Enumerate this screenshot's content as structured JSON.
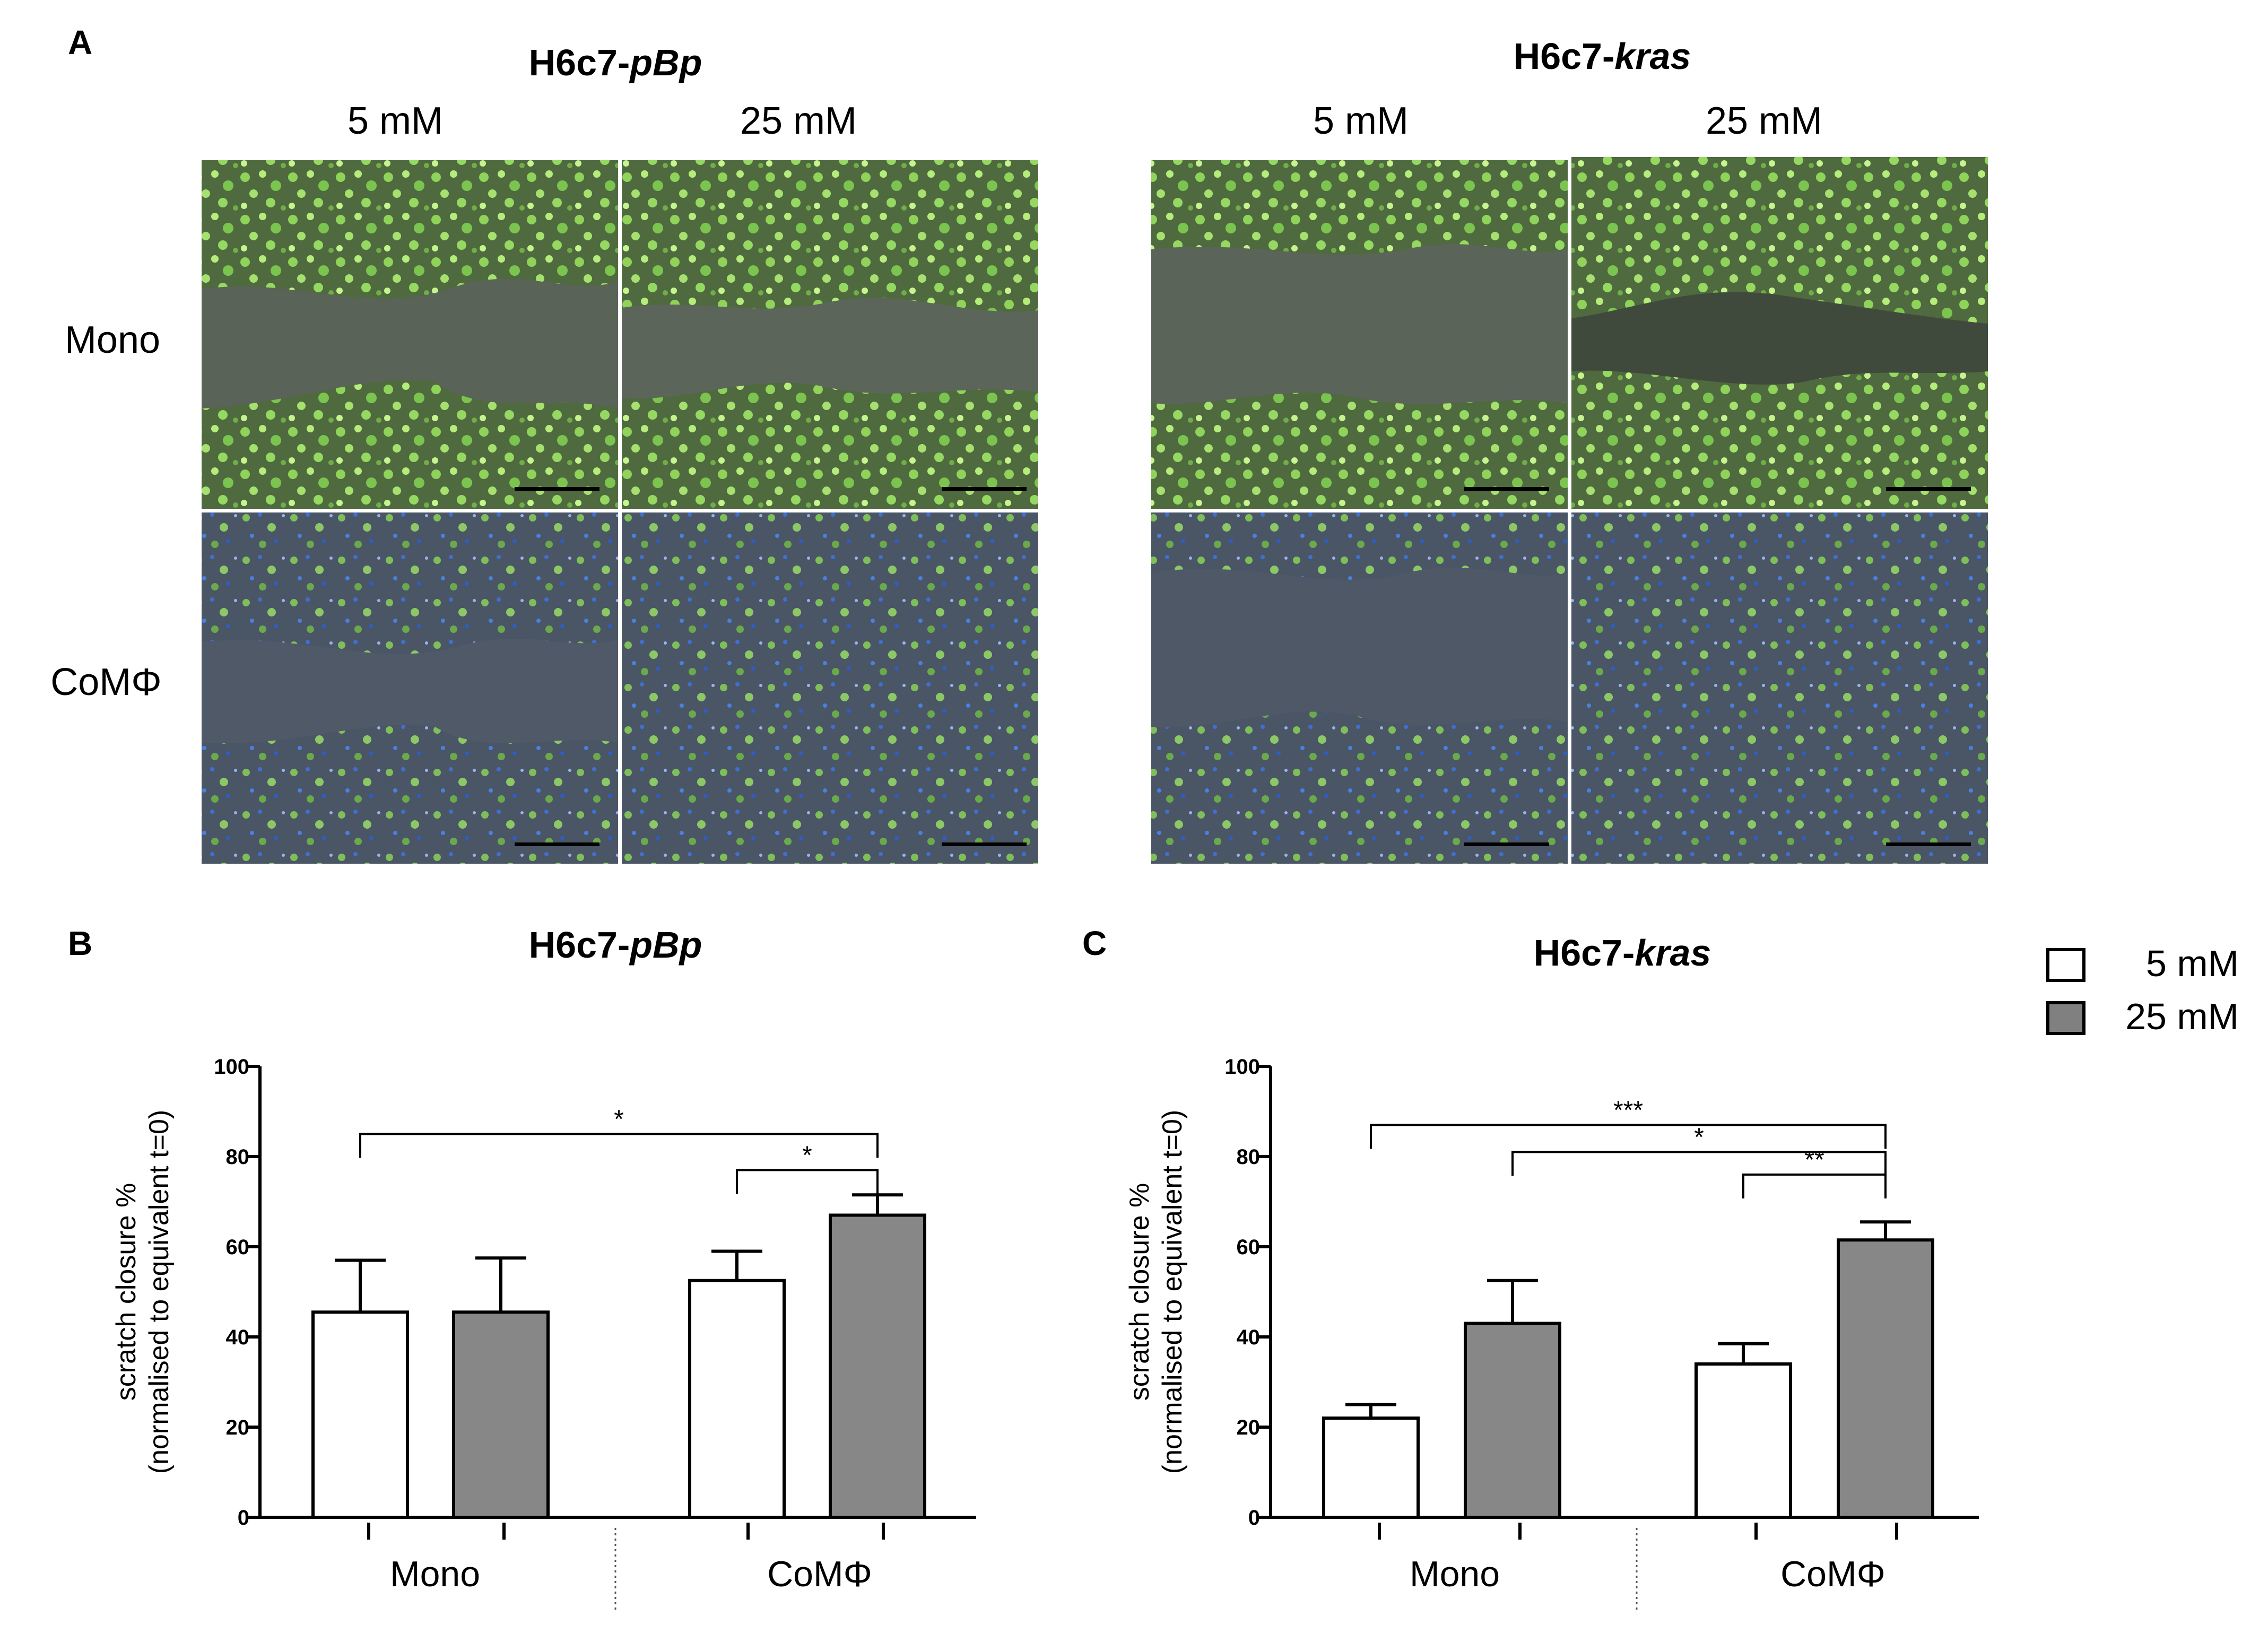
{
  "panels": {
    "A": {
      "label": "A",
      "groups": [
        {
          "title_main": "H6c7-",
          "title_ital": "pBp",
          "columns": [
            "5 mM",
            "25 mM"
          ]
        },
        {
          "title_main": "H6c7-",
          "title_ital": "kras",
          "columns": [
            "5 mM",
            "25 mM"
          ]
        }
      ],
      "rows": [
        "Mono",
        "CoMΦ"
      ]
    },
    "B": {
      "label": "B",
      "title_main": "H6c7-",
      "title_ital": "pBp"
    },
    "C": {
      "label": "C",
      "title_main": "H6c7-",
      "title_ital": "kras"
    }
  },
  "legend": {
    "items": [
      {
        "label": "5 mM",
        "color": "#ffffff"
      },
      {
        "label": "25 mM",
        "color": "#808080"
      }
    ]
  },
  "colors": {
    "bar_5mM": "#ffffff",
    "bar_25mM": "#878787",
    "axis": "#000000"
  },
  "chart_data": [
    {
      "type": "bar",
      "panel": "B",
      "title": "H6c7-pBp",
      "ylabel_line1": "scratch closure %",
      "ylabel_line2": "(normalised to equivalent t=0)",
      "xlabel": "",
      "ylim": [
        0,
        100
      ],
      "yticks": [
        "0",
        "20",
        "40",
        "60",
        "80",
        "100"
      ],
      "categories": [
        "Mono",
        "CoMΦ"
      ],
      "series": [
        {
          "name": "5 mM",
          "values": [
            45.5,
            52.5
          ],
          "errors": [
            11.5,
            6.5
          ]
        },
        {
          "name": "25 mM",
          "values": [
            45.5,
            67
          ],
          "errors": [
            12,
            4.5
          ]
        }
      ],
      "significance": [
        {
          "from": [
            0,
            0
          ],
          "to": [
            1,
            1
          ],
          "y": 85,
          "label": "*"
        },
        {
          "from": [
            1,
            0
          ],
          "to": [
            1,
            1
          ],
          "y": 77,
          "label": "*"
        }
      ]
    },
    {
      "type": "bar",
      "panel": "C",
      "title": "H6c7-kras",
      "ylabel_line1": "scratch closure %",
      "ylabel_line2": "(normalised to equivalent t=0)",
      "xlabel": "",
      "ylim": [
        0,
        100
      ],
      "yticks": [
        "0",
        "20",
        "40",
        "60",
        "80",
        "100"
      ],
      "categories": [
        "Mono",
        "CoMΦ"
      ],
      "series": [
        {
          "name": "5 mM",
          "values": [
            22,
            34
          ],
          "errors": [
            3,
            4.5
          ]
        },
        {
          "name": "25 mM",
          "values": [
            43,
            61.5
          ],
          "errors": [
            9.5,
            4
          ]
        }
      ],
      "significance": [
        {
          "from": [
            0,
            0
          ],
          "to": [
            1,
            1
          ],
          "y": 87,
          "label": "***"
        },
        {
          "from": [
            0,
            1
          ],
          "to": [
            1,
            1
          ],
          "y": 81,
          "label": "*"
        },
        {
          "from": [
            1,
            0
          ],
          "to": [
            1,
            1
          ],
          "y": 76,
          "label": "**"
        }
      ]
    }
  ]
}
